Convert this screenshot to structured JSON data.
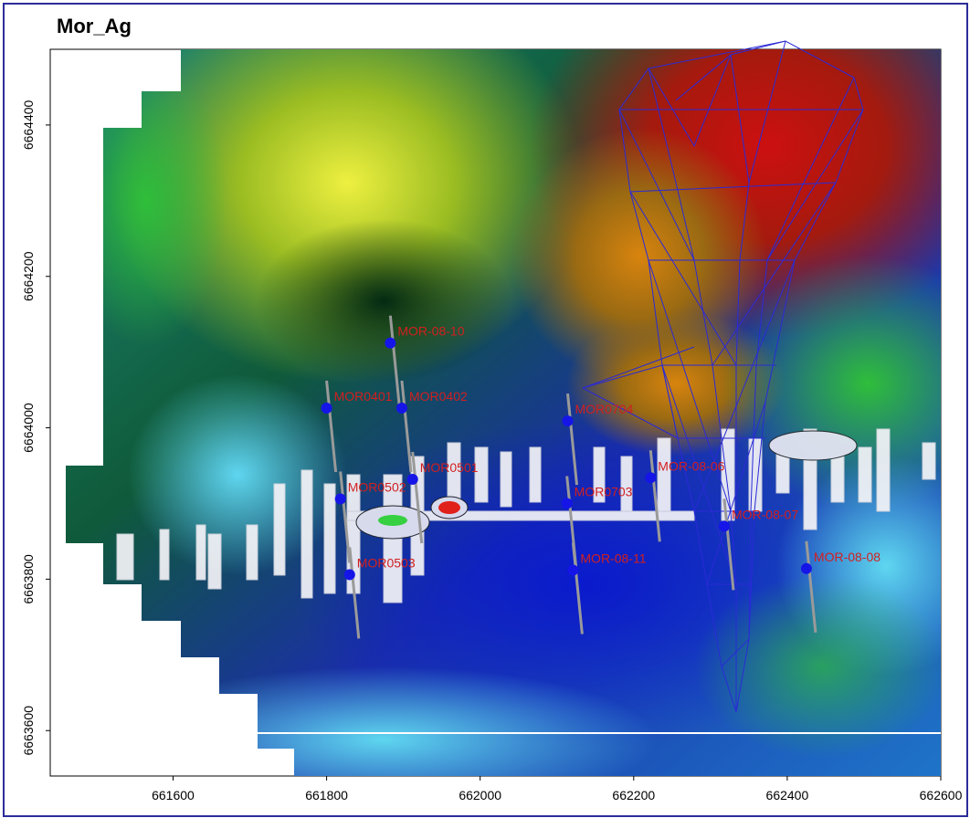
{
  "title": "Mor_Ag",
  "x_axis": {
    "min": 661440,
    "max": 662600,
    "ticks": [
      "661600",
      "661800",
      "662000",
      "662200",
      "662400",
      "662600"
    ]
  },
  "y_axis": {
    "min": 6663540,
    "max": 6664500,
    "ticks": [
      "6663600",
      "6663800",
      "6664000",
      "6664200",
      "6664400"
    ]
  },
  "colors": {
    "frame": "#2c2c9a",
    "wireframe": "#2a2ad6",
    "well_marker": "#1515e8",
    "well_label": "#d21f1f",
    "trace": "#9a9a9a"
  },
  "wells": [
    {
      "label": "MOR-08-10",
      "x": 661883,
      "y": 6664112
    },
    {
      "label": "MOR0401",
      "x": 661800,
      "y": 6664026
    },
    {
      "label": "MOR0402",
      "x": 661898,
      "y": 6664026
    },
    {
      "label": "MOR0704",
      "x": 662114,
      "y": 6664009
    },
    {
      "label": "MOR-08-06",
      "x": 662222,
      "y": 6663934
    },
    {
      "label": "MOR0703",
      "x": 662113,
      "y": 6663900
    },
    {
      "label": "MOR-08-07",
      "x": 662318,
      "y": 6663870
    },
    {
      "label": "MOR0502",
      "x": 661818,
      "y": 6663906
    },
    {
      "label": "MOR0501",
      "x": 661912,
      "y": 6663932
    },
    {
      "label": "MOR-08-11",
      "x": 662121,
      "y": 6663812
    },
    {
      "label": "MOR-08-08",
      "x": 662425,
      "y": 6663814
    },
    {
      "label": "MOR0503",
      "x": 661830,
      "y": 6663806
    }
  ]
}
